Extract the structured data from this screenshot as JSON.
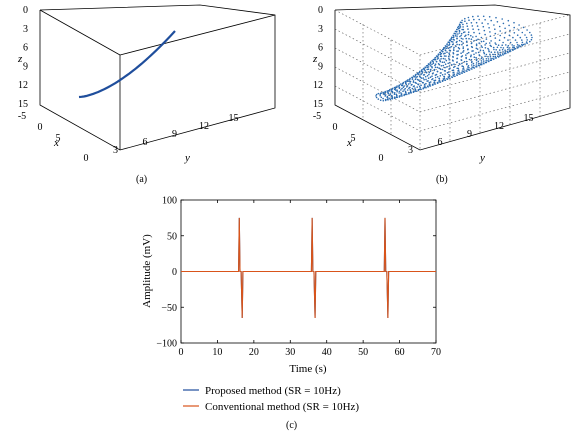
{
  "panels": {
    "a": {
      "caption": "(a)"
    },
    "b": {
      "caption": "(b)"
    },
    "c": {
      "caption": "(c)"
    }
  },
  "colors": {
    "proposed": "#1f4e9c",
    "conventional": "#d9541a",
    "scatter": "#2b6cb0"
  },
  "chart_data": [
    {
      "type": "line",
      "panel": "a",
      "xlabel": "x",
      "ylabel": "y",
      "zlabel": "z",
      "xticks": [
        "-5",
        "0",
        "5"
      ],
      "yticks": [
        "0",
        "3",
        "6",
        "9",
        "12",
        "15"
      ],
      "zticks": [
        "0",
        "3",
        "6",
        "9",
        "12",
        "15"
      ],
      "xlim": [
        -8,
        8
      ],
      "ylim": [
        0,
        15
      ],
      "zlim": [
        0,
        15
      ]
    },
    {
      "type": "scatter",
      "panel": "b",
      "xlabel": "x",
      "ylabel": "y",
      "zlabel": "z",
      "xticks": [
        "-5",
        "0",
        "5"
      ],
      "yticks": [
        "0",
        "3",
        "6",
        "9",
        "12",
        "15"
      ],
      "zticks": [
        "0",
        "3",
        "6",
        "9",
        "12",
        "15"
      ],
      "xlim": [
        -8,
        8
      ],
      "ylim": [
        0,
        15
      ],
      "zlim": [
        0,
        15
      ]
    },
    {
      "type": "line",
      "panel": "c",
      "xlabel": "Time (s)",
      "ylabel": "Amplitude (mV)",
      "xlim": [
        0,
        70
      ],
      "ylim": [
        -100,
        100
      ],
      "xticks": [
        "0",
        "10",
        "20",
        "30",
        "40",
        "50",
        "60",
        "70"
      ],
      "yticks": [
        "100",
        "50",
        "0",
        "−50",
        "−100"
      ],
      "series": [
        {
          "name": "Proposed method (SR = 10Hz)",
          "x": [
            0,
            15.8,
            16,
            16.2,
            16.5,
            16.8,
            17,
            35.8,
            36,
            36.2,
            36.5,
            36.8,
            37,
            55.8,
            56,
            56.2,
            56.5,
            56.8,
            57,
            70
          ],
          "y": [
            0,
            0,
            75,
            0,
            0,
            -65,
            0,
            0,
            75,
            0,
            0,
            -65,
            0,
            0,
            75,
            0,
            0,
            -65,
            0,
            0
          ]
        },
        {
          "name": "Conventional method (SR = 10Hz)",
          "x": [
            0,
            15.8,
            16,
            16.2,
            16.5,
            16.8,
            17,
            35.8,
            36,
            36.2,
            36.5,
            36.8,
            37,
            55.8,
            56,
            56.2,
            56.5,
            56.8,
            57,
            70
          ],
          "y": [
            0,
            0,
            75,
            0,
            0,
            -65,
            0,
            0,
            75,
            0,
            0,
            -65,
            0,
            0,
            75,
            0,
            0,
            -65,
            0,
            0
          ]
        }
      ]
    }
  ]
}
